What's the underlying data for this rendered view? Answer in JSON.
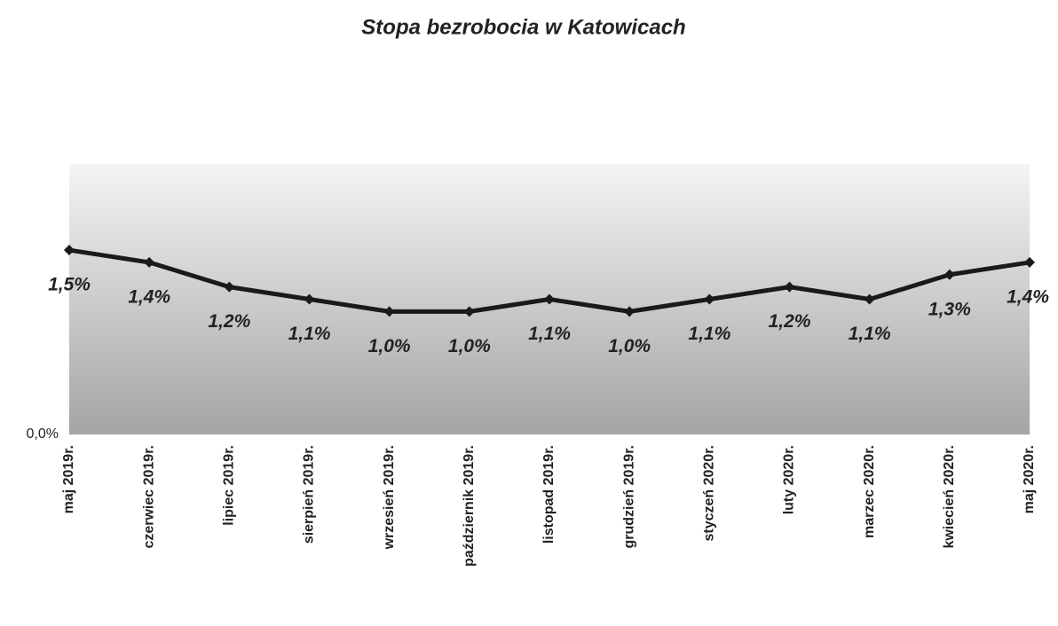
{
  "chart_data": {
    "type": "line",
    "title": "Stopa bezrobocia w Katowicach",
    "categories": [
      "maj 2019r.",
      "czerwiec 2019r.",
      "lipiec 2019r.",
      "sierpień 2019r.",
      "wrzesień 2019r.",
      "październik 2019r.",
      "listopad 2019r.",
      "grudzień 2019r.",
      "styczeń 2020r.",
      "luty 2020r.",
      "marzec 2020r.",
      "kwiecień 2020r.",
      "maj 2020r."
    ],
    "series": [
      {
        "name": "Stopa bezrobocia",
        "color": "#1a1a1a",
        "values": [
          1.5,
          1.4,
          1.2,
          1.1,
          1.0,
          1.0,
          1.1,
          1.0,
          1.1,
          1.2,
          1.1,
          1.3,
          1.4
        ],
        "value_labels": [
          "1,5%",
          "1,4%",
          "1,2%",
          "1,1%",
          "1,0%",
          "1,0%",
          "1,1%",
          "1,0%",
          "1,1%",
          "1,2%",
          "1,1%",
          "1,3%",
          "1,4%"
        ]
      }
    ],
    "ylim": [
      0,
      2.2
    ],
    "yticks": [
      {
        "value": 0,
        "label": "0,0%"
      }
    ],
    "grid": false
  }
}
